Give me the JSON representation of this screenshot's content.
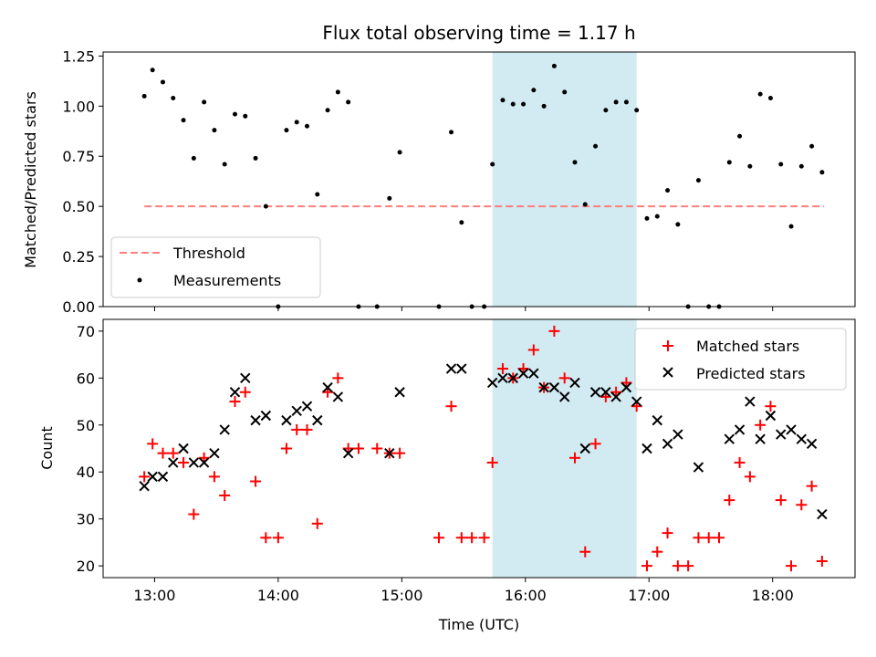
{
  "chart_data": [
    {
      "type": "scatter",
      "title": "Flux total observing time = 1.17 h",
      "ylabel": "Matched/Predicted stars",
      "xlabel": "",
      "ylim": [
        0,
        1.27
      ],
      "yticks": [
        "0.00",
        "0.25",
        "0.50",
        "0.75",
        "1.00",
        "1.25"
      ],
      "ytick_values": [
        0,
        0.25,
        0.5,
        0.75,
        1.0,
        1.25
      ],
      "shaded_interval": {
        "x0": "15:44",
        "x1": "16:54",
        "color": "#add8e6"
      },
      "legend_position": "lower-left",
      "series": [
        {
          "name": "Threshold",
          "style": "dashed-line",
          "color": "#ff7f7f",
          "x": [
            "12:55",
            "18:25"
          ],
          "y": [
            0.5,
            0.5
          ]
        },
        {
          "name": "Measurements",
          "style": "dot",
          "color": "#000000",
          "x": [
            "12:55",
            "12:59",
            "13:04",
            "13:09",
            "13:14",
            "13:19",
            "13:24",
            "13:29",
            "13:34",
            "13:39",
            "13:44",
            "13:49",
            "13:54",
            "14:00",
            "14:04",
            "14:09",
            "14:14",
            "14:19",
            "14:24",
            "14:29",
            "14:34",
            "14:39",
            "14:48",
            "14:54",
            "14:59",
            "15:18",
            "15:24",
            "15:29",
            "15:34",
            "15:40",
            "15:44",
            "15:49",
            "15:54",
            "15:59",
            "16:04",
            "16:09",
            "16:14",
            "16:19",
            "16:24",
            "16:29",
            "16:34",
            "16:39",
            "16:44",
            "16:49",
            "16:54",
            "16:59",
            "17:04",
            "17:09",
            "17:14",
            "17:19",
            "17:24",
            "17:29",
            "17:34",
            "17:39",
            "17:44",
            "17:49",
            "17:54",
            "17:59",
            "18:04",
            "18:09",
            "18:14",
            "18:19",
            "18:24"
          ],
          "y": [
            1.05,
            1.18,
            1.12,
            1.04,
            0.93,
            0.74,
            1.02,
            0.88,
            0.71,
            0.96,
            0.95,
            0.74,
            0.5,
            0.0,
            0.88,
            0.92,
            0.9,
            0.56,
            0.98,
            1.07,
            1.02,
            0.0,
            0.0,
            0.54,
            0.77,
            0.0,
            0.87,
            0.42,
            0.0,
            0.0,
            0.71,
            1.03,
            1.01,
            1.01,
            1.08,
            1.0,
            1.2,
            1.07,
            0.72,
            0.51,
            0.8,
            0.98,
            1.02,
            1.02,
            0.98,
            0.44,
            0.45,
            0.58,
            0.41,
            0.0,
            0.63,
            0.0,
            0.0,
            0.72,
            0.85,
            0.7,
            1.06,
            1.04,
            0.71,
            0.4,
            0.7,
            0.8,
            0.67
          ]
        }
      ]
    },
    {
      "type": "scatter",
      "title": "",
      "xlabel": "Time (UTC)",
      "ylabel": "Count",
      "ylim": [
        17.5,
        72.5
      ],
      "yticks": [
        "20",
        "30",
        "40",
        "50",
        "60",
        "70"
      ],
      "ytick_values": [
        20,
        30,
        40,
        50,
        60,
        70
      ],
      "xticks": [
        "13:00",
        "14:00",
        "15:00",
        "16:00",
        "17:00",
        "18:00"
      ],
      "xlim": [
        "12:35",
        "18:40"
      ],
      "shaded_interval": {
        "x0": "15:44",
        "x1": "16:54",
        "color": "#add8e6"
      },
      "legend_position": "top-right",
      "series": [
        {
          "name": "Matched stars",
          "style": "plus",
          "color": "#ff0000",
          "x": [
            "12:55",
            "12:59",
            "13:04",
            "13:09",
            "13:14",
            "13:19",
            "13:24",
            "13:29",
            "13:34",
            "13:39",
            "13:44",
            "13:49",
            "13:54",
            "14:00",
            "14:04",
            "14:09",
            "14:14",
            "14:19",
            "14:24",
            "14:29",
            "14:34",
            "14:39",
            "14:48",
            "14:54",
            "14:59",
            "15:18",
            "15:24",
            "15:29",
            "15:34",
            "15:40",
            "15:44",
            "15:49",
            "15:54",
            "15:59",
            "16:04",
            "16:09",
            "16:14",
            "16:19",
            "16:24",
            "16:29",
            "16:34",
            "16:39",
            "16:44",
            "16:49",
            "16:54",
            "16:59",
            "17:04",
            "17:09",
            "17:14",
            "17:19",
            "17:24",
            "17:29",
            "17:34",
            "17:39",
            "17:44",
            "17:49",
            "17:54",
            "17:59",
            "18:04",
            "18:09",
            "18:14",
            "18:19",
            "18:24"
          ],
          "y": [
            39,
            46,
            44,
            44,
            42,
            31,
            43,
            39,
            35,
            55,
            57,
            38,
            26,
            26,
            45,
            49,
            49,
            29,
            57,
            60,
            45,
            45,
            45,
            44,
            44,
            26,
            54,
            26,
            26,
            26,
            42,
            62,
            60,
            62,
            66,
            58,
            70,
            60,
            43,
            23,
            46,
            56,
            57,
            59,
            54,
            20,
            23,
            27,
            20,
            20,
            26,
            26,
            26,
            34,
            42,
            39,
            50,
            54,
            34,
            20,
            33,
            37,
            21
          ]
        },
        {
          "name": "Predicted stars",
          "style": "x",
          "color": "#000000",
          "x": [
            "12:55",
            "12:59",
            "13:04",
            "13:09",
            "13:14",
            "13:19",
            "13:24",
            "13:29",
            "13:34",
            "13:39",
            "13:44",
            "13:49",
            "13:54",
            "14:04",
            "14:09",
            "14:14",
            "14:19",
            "14:24",
            "14:29",
            "14:34",
            "14:54",
            "14:59",
            "15:24",
            "15:29",
            "15:44",
            "15:49",
            "15:54",
            "15:59",
            "16:04",
            "16:09",
            "16:14",
            "16:19",
            "16:24",
            "16:29",
            "16:34",
            "16:39",
            "16:44",
            "16:49",
            "16:54",
            "16:59",
            "17:04",
            "17:09",
            "17:14",
            "17:24",
            "17:39",
            "17:44",
            "17:49",
            "17:54",
            "17:59",
            "18:04",
            "18:09",
            "18:14",
            "18:19",
            "18:24"
          ],
          "y": [
            37,
            39,
            39,
            42,
            45,
            42,
            42,
            44,
            49,
            57,
            60,
            51,
            52,
            51,
            53,
            54,
            51,
            58,
            56,
            44,
            44,
            57,
            62,
            62,
            59,
            60,
            60,
            61,
            61,
            58,
            58,
            56,
            59,
            45,
            57,
            57,
            56,
            58,
            55,
            45,
            51,
            46,
            48,
            41,
            47,
            49,
            55,
            47,
            52,
            48,
            49,
            47,
            46,
            31
          ]
        }
      ]
    }
  ]
}
